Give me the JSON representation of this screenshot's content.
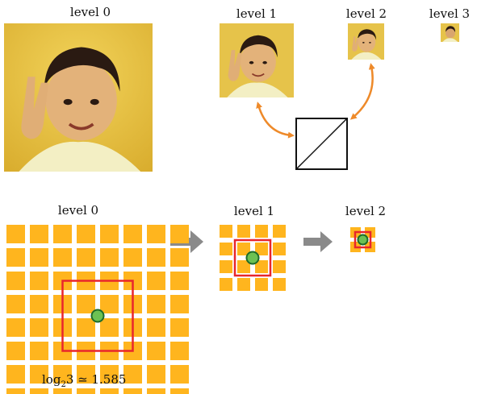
{
  "colors": {
    "tile": "#ffb51e",
    "box": "#e8262c",
    "dot_fill": "#6cc153",
    "dot_stroke": "#1f6b2a",
    "arrow_gray": "#8a8a8a",
    "arrow_orange": "#ee8a2a",
    "photo_bg": "#e9c94a"
  },
  "top": {
    "levels": [
      {
        "label": "level 0",
        "image": "portrait-photo"
      },
      {
        "label": "level 1",
        "image": "portrait-photo"
      },
      {
        "label": "level 2",
        "image": "portrait-photo"
      },
      {
        "label": "level 3",
        "image": "portrait-photo"
      }
    ],
    "diagonal_box_icon": "diagonal-square-icon"
  },
  "bottom": {
    "grids": [
      {
        "label": "level 0",
        "rows": 8,
        "cols": 8,
        "box_cells": 3
      },
      {
        "label": "level 1",
        "rows": 4,
        "cols": 4,
        "box_cells": 2
      },
      {
        "label": "level 2",
        "rows": 2,
        "cols": 2,
        "box_cells": 1
      }
    ],
    "formula": {
      "prefix": "log",
      "sub": "2",
      "arg": "3",
      "approx": "≃",
      "value": "1.585"
    }
  }
}
